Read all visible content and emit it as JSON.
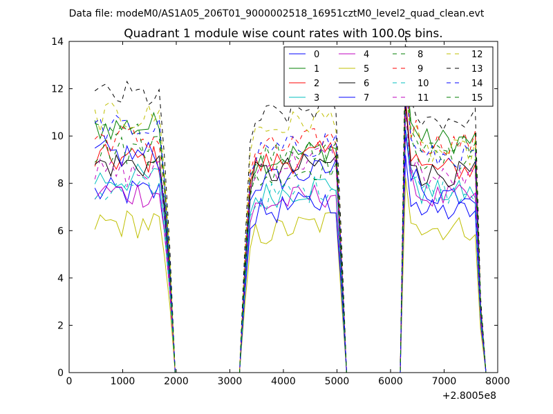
{
  "chart_data": {
    "type": "line",
    "suptitle": "Data file: modeM0/AS1A05_206T01_9000002518_16951cztM0_level2_quad_clean.evt",
    "title": "Quadrant 1 module wise count rates with 100.0s bins.",
    "xlabel": "",
    "ylabel": "",
    "x_offset_label": "+2.8005e8",
    "xlim": [
      0,
      8000
    ],
    "ylim": [
      0,
      14
    ],
    "xticks": [
      0,
      1000,
      2000,
      3000,
      4000,
      5000,
      6000,
      7000,
      8000
    ],
    "yticks": [
      0,
      2,
      4,
      6,
      8,
      10,
      12,
      14
    ],
    "legend_position": "top-right",
    "legend_ncol": 4,
    "segments": [
      {
        "start": 480,
        "n": 15
      },
      {
        "start": 3180,
        "n": 20
      },
      {
        "start": 6180,
        "n": 16
      }
    ],
    "series": [
      {
        "name": "0",
        "color": "#0000ff",
        "dash": "solid",
        "levels": [
          7.6,
          7.9,
          6.8
        ]
      },
      {
        "name": "1",
        "color": "#007f00",
        "dash": "solid",
        "levels": [
          10.4,
          8.8,
          9.8
        ]
      },
      {
        "name": "2",
        "color": "#ff0000",
        "dash": "solid",
        "levels": [
          9.0,
          8.6,
          8.6
        ]
      },
      {
        "name": "3",
        "color": "#00bfbf",
        "dash": "solid",
        "levels": [
          8.2,
          7.3,
          7.6
        ]
      },
      {
        "name": "4",
        "color": "#bf00bf",
        "dash": "solid",
        "levels": [
          7.6,
          6.9,
          7.4
        ]
      },
      {
        "name": "5",
        "color": "#bfbf00",
        "dash": "solid",
        "levels": [
          6.3,
          5.7,
          6.1
        ]
      },
      {
        "name": "6",
        "color": "#000000",
        "dash": "solid",
        "levels": [
          8.8,
          8.2,
          8.4
        ]
      },
      {
        "name": "7",
        "color": "#0000ff",
        "dash": "solid",
        "levels": [
          9.2,
          6.6,
          7.6
        ]
      },
      {
        "name": "8",
        "color": "#007f00",
        "dash": "dashed",
        "levels": [
          9.4,
          8.1,
          9.0
        ]
      },
      {
        "name": "9",
        "color": "#ff0000",
        "dash": "dashed",
        "levels": [
          9.9,
          9.2,
          9.7
        ]
      },
      {
        "name": "10",
        "color": "#00bfbf",
        "dash": "dashed",
        "levels": [
          7.7,
          7.2,
          7.7
        ]
      },
      {
        "name": "11",
        "color": "#bf00bf",
        "dash": "dashed",
        "levels": [
          8.4,
          8.5,
          8.2
        ]
      },
      {
        "name": "12",
        "color": "#bfbf00",
        "dash": "dashed",
        "levels": [
          10.8,
          10.1,
          9.3
        ]
      },
      {
        "name": "13",
        "color": "#000000",
        "dash": "dashed",
        "levels": [
          11.7,
          10.6,
          10.7
        ]
      },
      {
        "name": "14",
        "color": "#0000ff",
        "dash": "dashed",
        "levels": [
          10.3,
          9.1,
          9.1
        ]
      },
      {
        "name": "15",
        "color": "#007f00",
        "dash": "dashed",
        "levels": [
          10.0,
          9.0,
          9.6
        ]
      }
    ]
  }
}
